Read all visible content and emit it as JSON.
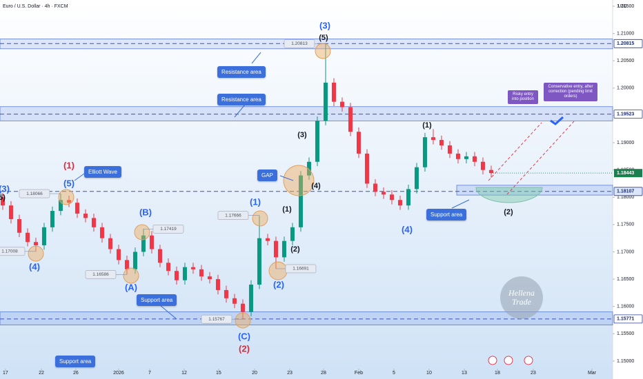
{
  "chart_data": {
    "type": "candlestick",
    "title": "Euro / U.S. Dollar · 4h · FXCM",
    "currency": "USD",
    "up_color": "#089981",
    "down_color": "#f23645",
    "x": [
      0,
      1,
      2,
      3,
      4,
      5,
      6,
      7,
      8,
      9,
      10,
      11,
      12,
      13,
      14,
      15,
      16,
      17,
      18,
      19,
      20,
      21,
      22,
      23,
      24,
      25,
      26,
      27,
      28,
      29,
      30,
      31,
      32,
      33,
      34,
      35,
      36,
      37,
      38,
      39,
      40,
      41,
      42,
      43,
      44,
      45,
      46,
      47,
      48,
      49,
      50,
      51,
      52,
      53,
      54,
      55,
      56,
      57,
      58,
      59
    ],
    "open": [
      1.18,
      1.1785,
      1.176,
      1.1735,
      1.1718,
      1.1712,
      1.1745,
      1.1775,
      1.1795,
      1.179,
      1.177,
      1.1762,
      1.1745,
      1.1725,
      1.1705,
      1.1685,
      1.1668,
      1.17,
      1.173,
      1.1705,
      1.168,
      1.1665,
      1.1648,
      1.1672,
      1.1668,
      1.1655,
      1.165,
      1.163,
      1.1615,
      1.1605,
      1.159,
      1.164,
      1.1725,
      1.172,
      1.169,
      1.172,
      1.1745,
      1.184,
      1.1865,
      1.194,
      1.201,
      1.1975,
      1.1965,
      1.192,
      1.188,
      1.1825,
      1.181,
      1.1805,
      1.1795,
      1.1785,
      1.1815,
      1.1855,
      1.191,
      1.1905,
      1.1895,
      1.188,
      1.187,
      1.1875,
      1.1865,
      1.185
    ],
    "high": [
      1.1808,
      1.1793,
      1.1768,
      1.1743,
      1.1726,
      1.1753,
      1.1783,
      1.18066,
      1.1803,
      1.1798,
      1.1778,
      1.177,
      1.1753,
      1.1733,
      1.1713,
      1.1693,
      1.1708,
      1.17419,
      1.1738,
      1.1713,
      1.1688,
      1.1673,
      1.168,
      1.168,
      1.1676,
      1.1663,
      1.1658,
      1.1638,
      1.1623,
      1.1613,
      1.1648,
      1.17666,
      1.1733,
      1.1728,
      1.1728,
      1.1753,
      1.1848,
      1.1873,
      1.1948,
      1.20813,
      1.2018,
      1.1983,
      1.1973,
      1.1928,
      1.1888,
      1.1833,
      1.1818,
      1.1813,
      1.1803,
      1.1823,
      1.1863,
      1.1918,
      1.1925,
      1.1913,
      1.1903,
      1.1888,
      1.1883,
      1.1883,
      1.1873,
      1.1858
    ],
    "low": [
      1.1777,
      1.1752,
      1.1727,
      1.171,
      1.17008,
      1.1704,
      1.1737,
      1.1767,
      1.1782,
      1.1762,
      1.1754,
      1.1737,
      1.1717,
      1.1697,
      1.1677,
      1.16586,
      1.166,
      1.1692,
      1.1697,
      1.1672,
      1.1657,
      1.164,
      1.164,
      1.166,
      1.1647,
      1.1642,
      1.1622,
      1.1607,
      1.1597,
      1.15767,
      1.1582,
      1.1632,
      1.1712,
      1.16691,
      1.1682,
      1.1712,
      1.1737,
      1.1832,
      1.1857,
      1.1932,
      1.1967,
      1.1957,
      1.1912,
      1.1872,
      1.1817,
      1.1802,
      1.1797,
      1.1787,
      1.1777,
      1.1777,
      1.1807,
      1.1847,
      1.1897,
      1.1887,
      1.1872,
      1.1862,
      1.1862,
      1.1857,
      1.1842,
      1.1836
    ],
    "close": [
      1.1785,
      1.176,
      1.1735,
      1.1718,
      1.1712,
      1.1745,
      1.1775,
      1.1795,
      1.179,
      1.177,
      1.1762,
      1.1745,
      1.1725,
      1.1705,
      1.1685,
      1.1668,
      1.17,
      1.173,
      1.1705,
      1.168,
      1.1665,
      1.1648,
      1.1672,
      1.1668,
      1.1655,
      1.165,
      1.163,
      1.1615,
      1.1605,
      1.159,
      1.164,
      1.1725,
      1.172,
      1.169,
      1.172,
      1.1745,
      1.184,
      1.1865,
      1.194,
      1.201,
      1.1975,
      1.1965,
      1.192,
      1.188,
      1.1825,
      1.181,
      1.1805,
      1.1795,
      1.1785,
      1.1815,
      1.1855,
      1.191,
      1.1905,
      1.1895,
      1.188,
      1.187,
      1.1875,
      1.1865,
      1.185,
      1.18443
    ],
    "xlim": [
      -0.33,
      73.67
    ],
    "xticks": [
      {
        "value": 0.33,
        "label": "17"
      },
      {
        "value": 4.67,
        "label": "22"
      },
      {
        "value": 8.83,
        "label": "26"
      },
      {
        "value": 14,
        "label": "2026"
      },
      {
        "value": 17.75,
        "label": "7"
      },
      {
        "value": 21.92,
        "label": "12"
      },
      {
        "value": 26.08,
        "label": "15"
      },
      {
        "value": 30.42,
        "label": "20"
      },
      {
        "value": 34.67,
        "label": "23"
      },
      {
        "value": 38.75,
        "label": "28"
      },
      {
        "value": 43,
        "label": "Feb"
      },
      {
        "value": 47.25,
        "label": "5"
      },
      {
        "value": 51.5,
        "label": "10"
      },
      {
        "value": 55.75,
        "label": "13"
      },
      {
        "value": 59.75,
        "label": "18"
      },
      {
        "value": 64.08,
        "label": "23"
      },
      {
        "value": 71.17,
        "label": "Mar"
      }
    ],
    "ylim": [
      1.1486,
      1.21614
    ],
    "yticks": [
      {
        "value": 1.15,
        "label": "1.15000"
      },
      {
        "value": 1.155,
        "label": "1.15500"
      },
      {
        "value": 1.16,
        "label": "1.16000"
      },
      {
        "value": 1.165,
        "label": "1.16500"
      },
      {
        "value": 1.17,
        "label": "1.17000"
      },
      {
        "value": 1.175,
        "label": "1.17500"
      },
      {
        "value": 1.18,
        "label": "1.18000"
      },
      {
        "value": 1.185,
        "label": "1.18500"
      },
      {
        "value": 1.19,
        "label": "1.19000"
      },
      {
        "value": 1.195,
        "label": "1.19500"
      },
      {
        "value": 1.2,
        "label": "1.20000"
      },
      {
        "value": 1.205,
        "label": "1.20500"
      },
      {
        "value": 1.21,
        "label": "1.21000"
      },
      {
        "value": 1.215,
        "label": "1.21500"
      }
    ],
    "levels": [
      1.20815,
      1.19523,
      1.18107,
      1.15771
    ],
    "zones": [
      [
        1.2072,
        1.209
      ],
      [
        1.194,
        1.1966
      ],
      [
        1.1804,
        1.1822
      ],
      [
        1.1566,
        1.159
      ]
    ],
    "annotations": [
      "Resistance area",
      "Resistance area",
      "Support area",
      "Support area",
      "Support area",
      "Elliott Wave",
      "GAP",
      "Risky entry into position",
      "Conservative entry, after correction (pending limit orders)",
      "Hellena Trade"
    ],
    "wave_labels": [
      "(3)",
      "5)",
      "(4)",
      "(1)",
      "(5)",
      "(B)",
      "(A)",
      "(C)",
      "(2)",
      "(1)",
      "(1)",
      "(2)",
      "(2)",
      "(3)",
      "(4)",
      "(3)",
      "(5)",
      "(1)",
      "(4)",
      "(2)"
    ]
  }
}
